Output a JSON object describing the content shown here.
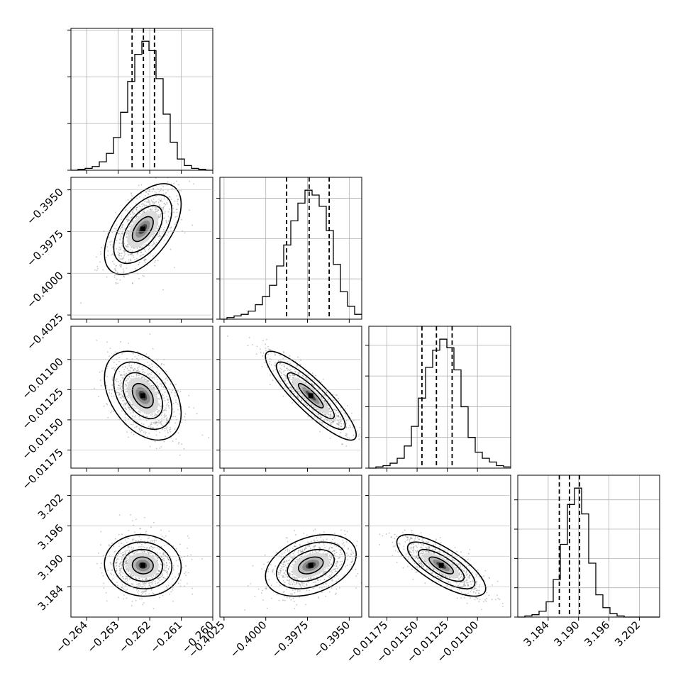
{
  "chart_data": {
    "type": "corner",
    "title": "",
    "parameters": [
      {
        "range": [
          -0.2645,
          -0.26
        ],
        "ticks": [
          -0.264,
          -0.263,
          -0.262,
          -0.261,
          -0.26
        ],
        "tick_labels": [
          "−0.264",
          "−0.263",
          "−0.262",
          "−0.261",
          "−0.260"
        ],
        "quantiles": [
          -0.26256,
          -0.2622,
          -0.26185
        ],
        "hist_edges": [
          -0.2645,
          -0.26
        ],
        "hist_counts": [
          0,
          1,
          2,
          4,
          9,
          18,
          35,
          62,
          95,
          124,
          138,
          128,
          98,
          60,
          30,
          12,
          5,
          2,
          1,
          0
        ]
      },
      {
        "range": [
          -0.40275,
          -0.39425
        ],
        "ticks": [
          -0.4025,
          -0.4,
          -0.3975,
          -0.395
        ],
        "tick_labels": [
          "−0.4025",
          "−0.4000",
          "−0.3975",
          "−0.3950"
        ],
        "quantiles": [
          -0.39875,
          -0.3974,
          -0.3962
        ],
        "hist_edges": [
          -0.40275,
          -0.39425
        ],
        "hist_counts": [
          0,
          1,
          2,
          3,
          5,
          9,
          14,
          21,
          33,
          46,
          61,
          72,
          80,
          77,
          70,
          55,
          34,
          17,
          8,
          3
        ]
      },
      {
        "range": [
          -0.0119,
          -0.010725
        ],
        "ticks": [
          -0.01175,
          -0.0115,
          -0.01125,
          -0.011
        ],
        "tick_labels": [
          "−0.01175",
          "−0.01150",
          "−0.01125",
          "−0.01100"
        ],
        "quantiles": [
          -0.01146,
          -0.01134,
          -0.01121
        ],
        "hist_edges": [
          -0.0119,
          -0.010725
        ],
        "hist_counts": [
          0,
          1,
          2,
          4,
          8,
          18,
          34,
          57,
          82,
          96,
          105,
          98,
          80,
          50,
          25,
          13,
          8,
          5,
          2,
          1
        ]
      },
      {
        "range": [
          3.178,
          3.206
        ],
        "ticks": [
          3.184,
          3.19,
          3.196,
          3.202
        ],
        "tick_labels": [
          "3.184",
          "3.190",
          "3.196",
          "3.202"
        ],
        "quantiles": [
          3.1862,
          3.1882,
          3.1902
        ],
        "hist_edges": [
          3.178,
          3.206
        ],
        "hist_counts": [
          0,
          1,
          2,
          5,
          13,
          32,
          62,
          96,
          110,
          88,
          46,
          19,
          8,
          3,
          1,
          0,
          0,
          0,
          0,
          0
        ]
      }
    ],
    "pairs": [
      {
        "x_param": 0,
        "y_param": 1,
        "center": [
          -0.26222,
          -0.39735
        ],
        "sigma": [
          0.00038,
          0.00085
        ],
        "correlation": 0.55
      },
      {
        "x_param": 0,
        "y_param": 2,
        "center": [
          -0.26222,
          -0.0113
        ],
        "sigma": [
          0.00038,
          0.000115
        ],
        "correlation": -0.4
      },
      {
        "x_param": 1,
        "y_param": 2,
        "center": [
          -0.3973,
          -0.0113
        ],
        "sigma": [
          0.00085,
          0.000115
        ],
        "correlation": -0.88
      },
      {
        "x_param": 0,
        "y_param": 3,
        "center": [
          -0.26222,
          3.1882
        ],
        "sigma": [
          0.00038,
          0.0019
        ],
        "correlation": -0.05
      },
      {
        "x_param": 1,
        "y_param": 3,
        "center": [
          -0.3973,
          3.1882
        ],
        "sigma": [
          0.00085,
          0.0019
        ],
        "correlation": 0.35
      },
      {
        "x_param": 2,
        "y_param": 3,
        "center": [
          -0.0113,
          3.1882
        ],
        "sigma": [
          0.000115,
          0.0019
        ],
        "correlation": -0.75
      }
    ],
    "contour_levels_sigma": [
      0.5,
      1.0,
      1.5,
      2.0
    ],
    "grid": true,
    "colors": {
      "line": "#000000",
      "grid": "#b0b0b0",
      "points": "#8c8c8c",
      "bins": "#555555"
    }
  }
}
